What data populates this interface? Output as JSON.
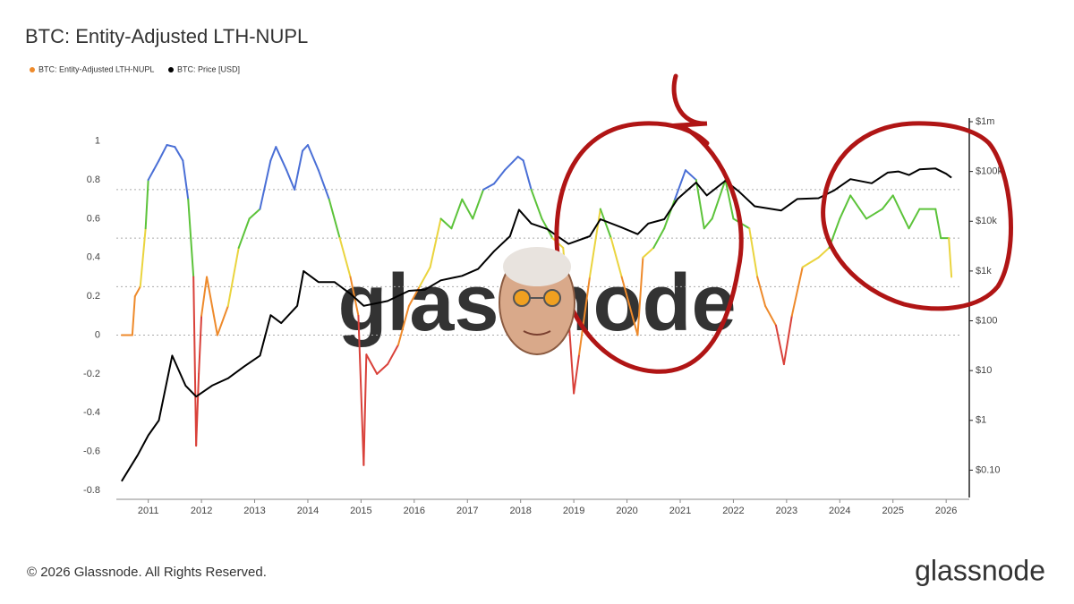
{
  "chart_data": {
    "type": "line",
    "title": "BTC: Entity-Adjusted LTH-NUPL",
    "watermark": "glassnode",
    "footer": "© 2026 Glassnode. All Rights Reserved.",
    "logo": "glassnode",
    "xlim": [
      2010.4,
      2026.3
    ],
    "xticks": [
      2011,
      2012,
      2013,
      2014,
      2015,
      2016,
      2017,
      2018,
      2019,
      2020,
      2021,
      2022,
      2023,
      2024,
      2025,
      2026
    ],
    "ylim": [
      -0.83,
      1.1
    ],
    "yticks": [
      -0.8,
      -0.6,
      -0.4,
      -0.2,
      0,
      0.2,
      0.4,
      0.6,
      0.8,
      1
    ],
    "y2lim": [
      0.03,
      1000000
    ],
    "y2log": true,
    "y2ticks": [
      {
        "value": 0.1,
        "label": "$0.10"
      },
      {
        "value": 1,
        "label": "$1"
      },
      {
        "value": 10,
        "label": "$10"
      },
      {
        "value": 100,
        "label": "$100"
      },
      {
        "value": 1000,
        "label": "$1k"
      },
      {
        "value": 10000,
        "label": "$10k"
      },
      {
        "value": 100000,
        "label": "$100k"
      },
      {
        "value": 1000000,
        "label": "$1m"
      }
    ],
    "zone_thresholds": [
      0,
      0.25,
      0.5,
      0.75
    ],
    "zone_colors": [
      "#d9413a",
      "#ee8a2b",
      "#ead43e",
      "#5cc33a",
      "#4a6fd6"
    ],
    "series": [
      {
        "name": "BTC: Entity-Adjusted LTH-NUPL",
        "color": "#ee8a2b",
        "axis": "y",
        "x": [
          2010.5,
          2010.7,
          2010.75,
          2010.85,
          2010.95,
          2011.0,
          2011.1,
          2011.2,
          2011.35,
          2011.5,
          2011.65,
          2011.75,
          2011.85,
          2011.9,
          2011.95,
          2012.0,
          2012.1,
          2012.3,
          2012.5,
          2012.7,
          2012.9,
          2013.1,
          2013.3,
          2013.4,
          2013.6,
          2013.75,
          2013.9,
          2014.0,
          2014.2,
          2014.4,
          2014.6,
          2014.8,
          2014.95,
          2015.05,
          2015.1,
          2015.3,
          2015.5,
          2015.7,
          2015.9,
          2016.1,
          2016.3,
          2016.5,
          2016.7,
          2016.9,
          2017.1,
          2017.3,
          2017.5,
          2017.7,
          2017.95,
          2018.05,
          2018.2,
          2018.4,
          2018.6,
          2018.8,
          2018.9,
          2019.0,
          2019.1,
          2019.3,
          2019.5,
          2019.7,
          2019.9,
          2020.2,
          2020.3,
          2020.5,
          2020.7,
          2020.9,
          2021.1,
          2021.3,
          2021.45,
          2021.6,
          2021.85,
          2022.0,
          2022.3,
          2022.45,
          2022.6,
          2022.8,
          2022.95,
          2023.1,
          2023.3,
          2023.6,
          2023.8,
          2024.0,
          2024.2,
          2024.5,
          2024.8,
          2025.0,
          2025.3,
          2025.5,
          2025.8,
          2025.9,
          2026.05,
          2026.1
        ],
        "values": [
          0.0,
          0.0,
          0.2,
          0.25,
          0.55,
          0.8,
          0.85,
          0.9,
          0.98,
          0.97,
          0.9,
          0.7,
          0.3,
          -0.57,
          -0.2,
          0.1,
          0.3,
          0.0,
          0.15,
          0.45,
          0.6,
          0.65,
          0.9,
          0.97,
          0.85,
          0.75,
          0.95,
          0.98,
          0.85,
          0.7,
          0.5,
          0.3,
          0.1,
          -0.67,
          -0.1,
          -0.2,
          -0.15,
          -0.05,
          0.15,
          0.25,
          0.35,
          0.6,
          0.55,
          0.7,
          0.6,
          0.75,
          0.78,
          0.85,
          0.92,
          0.9,
          0.75,
          0.6,
          0.5,
          0.45,
          0.1,
          -0.3,
          -0.1,
          0.3,
          0.65,
          0.5,
          0.3,
          0.0,
          0.4,
          0.45,
          0.55,
          0.7,
          0.85,
          0.8,
          0.55,
          0.6,
          0.8,
          0.6,
          0.55,
          0.3,
          0.15,
          0.05,
          -0.15,
          0.1,
          0.35,
          0.4,
          0.45,
          0.6,
          0.72,
          0.6,
          0.65,
          0.72,
          0.55,
          0.65,
          0.65,
          0.5,
          0.5,
          0.3
        ]
      },
      {
        "name": "BTC: Price [USD]",
        "color": "#000000",
        "axis": "y2",
        "x": [
          2010.5,
          2010.8,
          2011.0,
          2011.2,
          2011.45,
          2011.7,
          2011.9,
          2012.2,
          2012.5,
          2012.8,
          2013.1,
          2013.3,
          2013.5,
          2013.8,
          2013.92,
          2014.2,
          2014.5,
          2014.8,
          2015.05,
          2015.5,
          2015.9,
          2016.2,
          2016.5,
          2016.9,
          2017.2,
          2017.5,
          2017.8,
          2017.97,
          2018.2,
          2018.5,
          2018.9,
          2019.3,
          2019.5,
          2019.9,
          2020.2,
          2020.4,
          2020.7,
          2020.95,
          2021.3,
          2021.5,
          2021.85,
          2022.1,
          2022.4,
          2022.9,
          2023.2,
          2023.6,
          2023.9,
          2024.2,
          2024.6,
          2024.9,
          2025.1,
          2025.3,
          2025.5,
          2025.8,
          2026.0,
          2026.1
        ],
        "values": [
          0.06,
          0.2,
          0.5,
          1,
          20,
          5,
          3,
          5,
          7,
          12,
          20,
          130,
          90,
          200,
          1000,
          600,
          600,
          350,
          200,
          250,
          400,
          420,
          650,
          800,
          1100,
          2500,
          5000,
          17000,
          9000,
          7000,
          3500,
          5000,
          11000,
          7500,
          5500,
          9000,
          11000,
          28000,
          60000,
          33000,
          65000,
          40000,
          20000,
          16500,
          28000,
          29000,
          42000,
          70000,
          58000,
          95000,
          100000,
          85000,
          110000,
          115000,
          90000,
          75000
        ]
      }
    ]
  }
}
